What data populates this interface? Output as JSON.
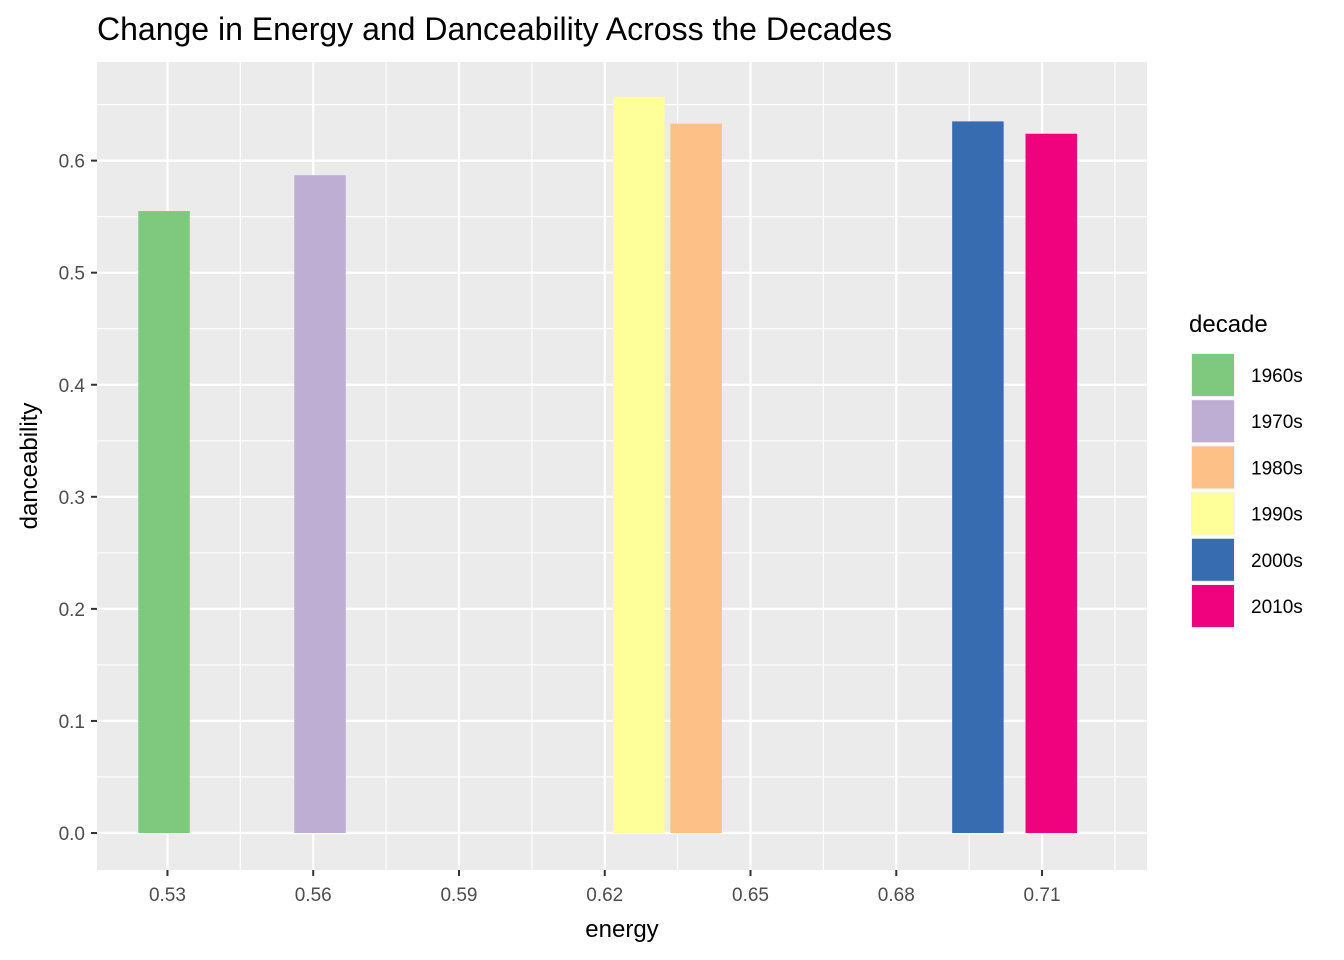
{
  "chart_data": {
    "type": "bar",
    "title": "Change in Energy and Danceability Across the Decades",
    "xlabel": "energy",
    "ylabel": "danceability",
    "xlim": [
      0.5155,
      0.7316
    ],
    "ylim": [
      -0.033,
      0.688
    ],
    "xticks": [
      0.53,
      0.56,
      0.59,
      0.62,
      0.65,
      0.68,
      0.71
    ],
    "xtick_labels": [
      "0.53",
      "0.56",
      "0.59",
      "0.62",
      "0.65",
      "0.68",
      "0.71"
    ],
    "yticks": [
      0.0,
      0.1,
      0.2,
      0.3,
      0.4,
      0.5,
      0.6
    ],
    "ytick_labels": [
      "0.0",
      "0.1",
      "0.2",
      "0.3",
      "0.4",
      "0.5",
      "0.6"
    ],
    "grid": true,
    "legend_title": "decade",
    "legend_position": "right",
    "bar_width": 0.0106,
    "series": [
      {
        "name": "1960s",
        "energy": 0.5293,
        "danceability": 0.555,
        "color": "#7FC97F"
      },
      {
        "name": "1970s",
        "energy": 0.5614,
        "danceability": 0.587,
        "color": "#BEAED4"
      },
      {
        "name": "1980s",
        "energy": 0.6388,
        "danceability": 0.633,
        "color": "#FDC086"
      },
      {
        "name": "1990s",
        "energy": 0.627,
        "danceability": 0.657,
        "color": "#FFFF99"
      },
      {
        "name": "2000s",
        "energy": 0.6968,
        "danceability": 0.635,
        "color": "#386CB0"
      },
      {
        "name": "2010s",
        "energy": 0.7119,
        "danceability": 0.624,
        "color": "#F0027F"
      }
    ]
  }
}
